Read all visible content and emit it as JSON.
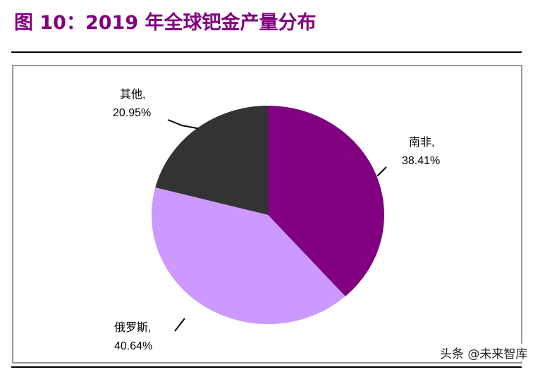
{
  "title": "图 10：2019 年全球钯金产量分布",
  "watermark": "头条 @未来智库",
  "chart_data": {
    "type": "pie",
    "title": "图 10：2019 年全球钯金产量分布",
    "start_angle": "12 o'clock",
    "direction": "clockwise",
    "slices": [
      {
        "label": "南非,",
        "value": 38.41,
        "value_label": "38.41%",
        "color": "#800080"
      },
      {
        "label": "俄罗斯,",
        "value": 40.64,
        "value_label": "40.64%",
        "color": "#CC99FF"
      },
      {
        "label": "其他,",
        "value": 20.95,
        "value_label": "20.95%",
        "color": "#333333"
      }
    ]
  }
}
